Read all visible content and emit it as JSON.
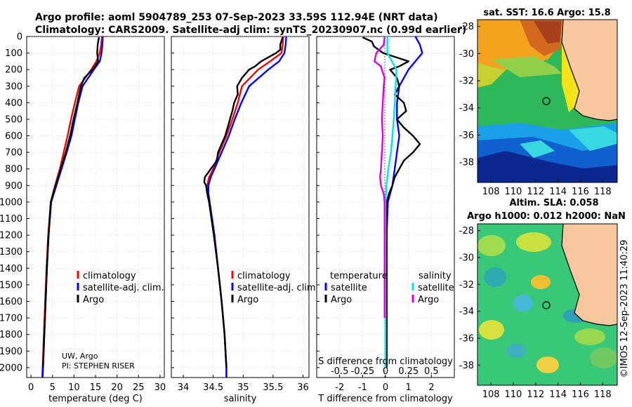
{
  "header": {
    "title_line1": "Argo profile: aoml 5904789_253 07-Sep-2023 33.59S 112.94E (NRT data)",
    "title_line2": "Climatology: CARS2009. Satellite-adj clim: synTS_20230907.nc (0.99d earlier)"
  },
  "colors": {
    "climatology": "#ff0000",
    "satellite_adj": "#0000ff",
    "argo": "#000000",
    "sat_temp": "#00e5e5",
    "sat_sal": "#e000e0",
    "land": "#f7c7a0"
  },
  "chart_data": [
    {
      "id": "temperature",
      "type": "line",
      "xlabel": "temperature (deg C)",
      "ylabel": "",
      "xlim": [
        -1,
        31
      ],
      "ylim": [
        2060,
        0
      ],
      "xticks": [
        "0",
        "5",
        "10",
        "15",
        "20",
        "25",
        "30"
      ],
      "yticks": [
        "0",
        "100",
        "200",
        "300",
        "400",
        "500",
        "600",
        "700",
        "800",
        "900",
        "1000",
        "1100",
        "1200",
        "1300",
        "1400",
        "1500",
        "1600",
        "1700",
        "1800",
        "1900",
        "2000"
      ],
      "legend": [
        "climatology",
        "satellite-adj. clim.",
        "Argo"
      ],
      "annotation": [
        "UW, Argo",
        "PI: STEPHEN RISER"
      ],
      "series": [
        {
          "name": "climatology",
          "depth": [
            0,
            50,
            100,
            150,
            200,
            300,
            400,
            500,
            600,
            700,
            800,
            900,
            1000,
            1200,
            1400,
            1600,
            1800,
            2000,
            2060
          ],
          "values": [
            16.5,
            16.3,
            16.0,
            15.2,
            14.0,
            11.2,
            10.2,
            9.3,
            8.5,
            7.6,
            6.7,
            5.6,
            4.6,
            4.0,
            3.6,
            3.3,
            3.0,
            2.7,
            2.6
          ]
        },
        {
          "name": "satellite-adj. clim.",
          "depth": [
            0,
            50,
            100,
            150,
            200,
            300,
            400,
            500,
            600,
            700,
            800,
            900,
            1000,
            1200,
            1400,
            1600,
            1800,
            2000,
            2060
          ],
          "values": [
            16.7,
            16.6,
            16.4,
            16.0,
            14.6,
            12.0,
            11.0,
            10.2,
            9.4,
            8.3,
            7.1,
            5.9,
            4.7,
            4.1,
            3.7,
            3.4,
            3.1,
            2.8,
            2.7
          ]
        },
        {
          "name": "Argo",
          "depth": [
            5,
            50,
            100,
            150,
            200,
            250,
            300,
            400,
            500,
            600,
            700,
            800,
            900,
            1000,
            1200,
            1400,
            1600,
            1800,
            2000
          ],
          "values": [
            15.8,
            15.5,
            15.4,
            15.6,
            14.3,
            12.4,
            11.6,
            10.8,
            9.9,
            9.1,
            8.1,
            6.9,
            5.7,
            4.6,
            4.1,
            3.7,
            3.4,
            3.1,
            2.8
          ]
        }
      ]
    },
    {
      "id": "salinity",
      "type": "line",
      "xlabel": "salinity",
      "ylabel": "",
      "xlim": [
        33.8,
        36.1
      ],
      "ylim": [
        2060,
        0
      ],
      "xticks": [
        "34",
        "34.5",
        "35",
        "35.5",
        "36"
      ],
      "legend": [
        "climatology",
        "satellite-adj. clim.",
        "Argo"
      ],
      "series": [
        {
          "name": "climatology",
          "depth": [
            0,
            50,
            100,
            150,
            200,
            300,
            400,
            500,
            600,
            700,
            800,
            850,
            900,
            950,
            1000,
            1200,
            1400,
            1600,
            1800,
            2000,
            2060
          ],
          "values": [
            35.67,
            35.66,
            35.64,
            35.45,
            35.25,
            34.98,
            34.91,
            34.82,
            34.72,
            34.6,
            34.5,
            34.43,
            34.4,
            34.42,
            34.44,
            34.52,
            34.58,
            34.64,
            34.69,
            34.72,
            34.72
          ]
        },
        {
          "name": "satellite-adj. clim.",
          "depth": [
            0,
            50,
            100,
            150,
            200,
            300,
            400,
            500,
            600,
            700,
            800,
            850,
            900,
            950,
            1000,
            1200,
            1400,
            1600,
            1800,
            2000,
            2060
          ],
          "values": [
            35.72,
            35.71,
            35.69,
            35.6,
            35.42,
            35.1,
            34.97,
            34.86,
            34.76,
            34.64,
            34.52,
            34.46,
            34.42,
            34.42,
            34.44,
            34.52,
            34.58,
            34.64,
            34.69,
            34.72,
            34.72
          ]
        },
        {
          "name": "Argo",
          "depth": [
            5,
            50,
            80,
            100,
            150,
            180,
            200,
            250,
            300,
            350,
            400,
            450,
            500,
            600,
            700,
            750,
            800,
            850,
            880,
            900,
            950,
            1000,
            1200,
            1400,
            1600,
            1800,
            2000
          ],
          "values": [
            35.66,
            35.62,
            35.62,
            35.55,
            35.3,
            35.2,
            35.1,
            34.98,
            34.9,
            34.91,
            34.85,
            34.82,
            34.78,
            34.7,
            34.58,
            34.56,
            34.46,
            34.36,
            34.35,
            34.38,
            34.4,
            34.43,
            34.51,
            34.58,
            34.64,
            34.69,
            34.72
          ]
        }
      ]
    },
    {
      "id": "difference",
      "type": "line",
      "xlabel": "T difference from climatology",
      "x2label": "S difference from climatology",
      "xlim": [
        -3,
        3
      ],
      "ylim": [
        2060,
        0
      ],
      "xticks": [
        "-2",
        "-1",
        "0",
        "1",
        "2"
      ],
      "x2ticks": [
        "-0.5",
        "-0.25",
        "0",
        "0.25",
        "0.5"
      ],
      "legend_temperature_title": "temperature",
      "legend_salinity_title": "salinity",
      "legend_temperature": [
        "satellite",
        "Argo"
      ],
      "legend_salinity": [
        "satellite",
        "Argo"
      ],
      "series": [
        {
          "name": "temperature satellite",
          "depth": [
            0,
            50,
            100,
            200,
            300,
            400,
            500,
            600,
            700,
            800,
            900,
            1000,
            1200,
            1400,
            1600,
            1800,
            2000
          ],
          "values": [
            1.3,
            1.5,
            1.6,
            1.0,
            0.6,
            0.5,
            0.5,
            0.6,
            0.5,
            0.4,
            0.3,
            0.1,
            0.05,
            0.05,
            0.05,
            0.05,
            0.05
          ]
        },
        {
          "name": "temperature Argo",
          "depth": [
            5,
            30,
            60,
            100,
            150,
            180,
            200,
            250,
            300,
            350,
            400,
            450,
            500,
            550,
            600,
            650,
            700,
            750,
            800,
            850,
            900,
            950,
            1000,
            1100,
            1200,
            1400,
            1600,
            1800,
            2000
          ],
          "values": [
            -1.0,
            -0.6,
            -0.5,
            -0.1,
            1.0,
            0.6,
            0.2,
            0.5,
            0.6,
            0.4,
            0.8,
            0.9,
            0.5,
            0.8,
            1.2,
            1.5,
            1.2,
            0.8,
            0.6,
            0.4,
            0.3,
            0.15,
            0.05,
            0.05,
            0.05,
            0.05,
            0.05,
            0.05,
            0.05
          ]
        },
        {
          "name": "salinity satellite",
          "depth": [
            0,
            100,
            200,
            300,
            500,
            700,
            800,
            900,
            1000,
            1100,
            1200,
            1400,
            1600,
            1800,
            2000
          ],
          "values": [
            0.02,
            0.02,
            0.12,
            0.11,
            0.09,
            0.06,
            0.03,
            0.01,
            0.0,
            0.0,
            0.0,
            0.0,
            0.0,
            0.0,
            0.0
          ]
        },
        {
          "name": "salinity Argo",
          "depth": [
            5,
            50,
            100,
            150,
            180,
            200,
            250,
            300,
            400,
            500,
            600,
            700,
            800,
            850,
            900,
            950,
            1000,
            1100,
            1200,
            1400,
            1600,
            1700
          ],
          "values": [
            -0.01,
            -0.02,
            -0.1,
            -0.12,
            -0.05,
            -0.04,
            -0.01,
            -0.02,
            -0.03,
            -0.04,
            -0.03,
            -0.04,
            -0.05,
            -0.06,
            -0.05,
            -0.02,
            -0.01,
            -0.01,
            -0.01,
            -0.01,
            -0.01,
            -0.01
          ]
        }
      ]
    },
    {
      "id": "sst_map",
      "type": "heatmap",
      "title": "sat. SST: 16.6 Argo: 15.8",
      "xticks": [
        "108",
        "110",
        "112",
        "114",
        "116",
        "118"
      ],
      "yticks": [
        "-28",
        "-30",
        "-32",
        "-34",
        "-36",
        "-38"
      ],
      "xlim": [
        106.8,
        119.3
      ],
      "ylim": [
        -39.5,
        -27.5
      ],
      "argo_position": [
        112.94,
        -33.59
      ]
    },
    {
      "id": "sla_map",
      "type": "heatmap",
      "title_line1": "Altim. SLA: 0.058",
      "title_line2": "Argo h1000: 0.012 h2000: NaN",
      "xticks": [
        "108",
        "110",
        "112",
        "114",
        "116",
        "118"
      ],
      "yticks": [
        "-28",
        "-30",
        "-32",
        "-34",
        "-36",
        "-38"
      ],
      "xlim": [
        106.8,
        119.3
      ],
      "ylim": [
        -39.5,
        -27.5
      ],
      "argo_position": [
        112.94,
        -33.59
      ],
      "credit": "©IMOS 12-Sep-2023 11:40:29"
    }
  ]
}
